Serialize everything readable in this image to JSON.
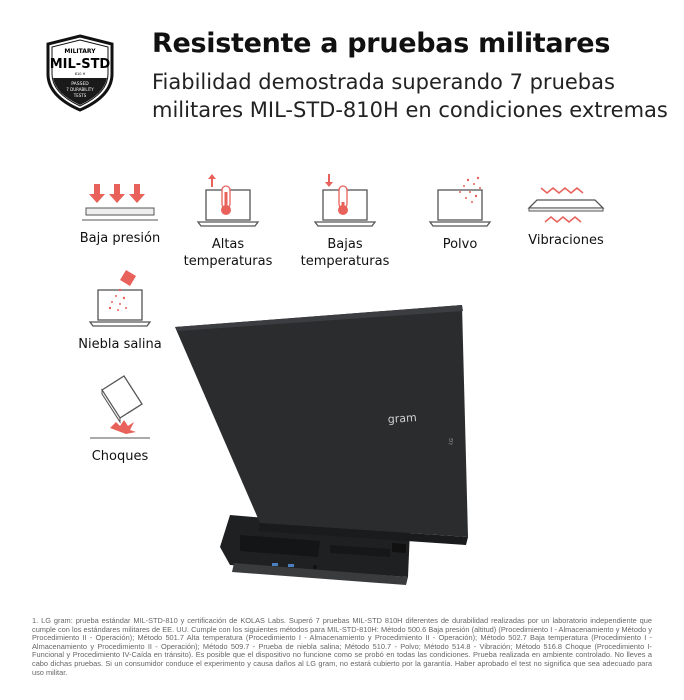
{
  "badge": {
    "top": "MILITARY",
    "main": "MIL-STD",
    "code": "810 H",
    "bottom": "PASSED 7 DURABILITY TESTS",
    "icon": "shield-badge"
  },
  "header": {
    "title": "Resistente a pruebas militares",
    "subtitle_line1": "Fiabilidad demostrada superando 7 pruebas",
    "subtitle_line2": "militares MIL-STD-810H en condiciones extremas"
  },
  "features": [
    {
      "label": "Baja presión",
      "icon": "low-pressure-icon"
    },
    {
      "label": "Altas temperaturas",
      "icon": "high-temperature-icon"
    },
    {
      "label": "Bajas temperaturas",
      "icon": "low-temperature-icon"
    },
    {
      "label": "Polvo",
      "icon": "dust-icon"
    },
    {
      "label": "Vibraciones",
      "icon": "vibration-icon"
    },
    {
      "label": "Niebla salina",
      "icon": "salt-fog-icon"
    },
    {
      "label": "Choques",
      "icon": "shock-icon"
    }
  ],
  "product": {
    "logo": "gram"
  },
  "colors": {
    "accent": "#e8615a",
    "laptop": "#2b2c2e"
  },
  "footnote": "1. LG gram: prueba estándar MIL-STD-810 y certificación de KOLAS Labs. Superó 7 pruebas MIL-STD 810H diferentes de durabilidad realizadas por un laboratorio independiente que cumple con los estándares militares de EE. UU. Cumple con los siguientes métodos para MIL-STD-810H: Método 500.6 Baja presión (altitud) (Procedimiento I - Almacenamiento y Método y Procedimiento II - Operación); Método 501.7 Alta temperatura (Procedimiento I - Almacenamiento y Procedimiento II - Operación); Método 502.7 Baja temperatura (Procedimiento I - Almacenamiento y Procedimiento II - Operación); Método 509.7 - Prueba de niebla salina; Método 510.7 - Polvo; Método 514.8 - Vibración; Método 516.8 Choque (Procedimiento I-Funcional y Procedimiento IV-Caída en tránsito). Es posible que el dispositivo no funcione como se probó en todas las condiciones. Prueba realizada en ambiente controlado. No lleves a cabo dichas pruebas. Si un consumidor conduce el experimento y causa daños al LG gram, no estará cubierto por la garantía. Haber aprobado el test no significa que sea adecuado para uso militar."
}
